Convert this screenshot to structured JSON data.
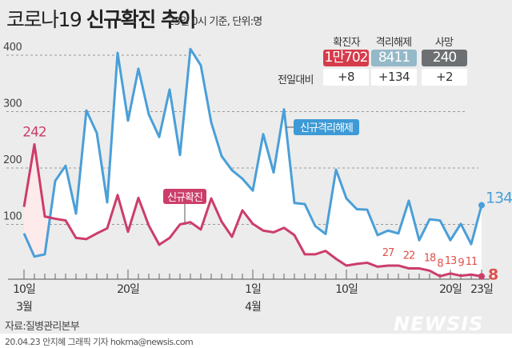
{
  "header": {
    "title_light": "코로나19",
    "title_bold": "신규확진 추이",
    "subtitle": "23일 0시 기준, 단위:명"
  },
  "summary": {
    "columns": [
      {
        "label": "확진자",
        "total": "1만702",
        "diff": "+8",
        "color": "#d63b4b"
      },
      {
        "label": "격리해제",
        "total": "8411",
        "diff": "+134",
        "color": "#94b9c8"
      },
      {
        "label": "사망",
        "total": "240",
        "diff": "+2",
        "color": "#6d7072"
      }
    ],
    "diff_label": "전일대비"
  },
  "chart_data": {
    "type": "line",
    "title": "코로나19 신규확진 추이",
    "x_start": "3월 10일",
    "x_end": "4월 23일",
    "x_tick_labels": [
      {
        "day": "10일",
        "month": "3월",
        "index": 0
      },
      {
        "day": "20일",
        "index": 10
      },
      {
        "day": "1일",
        "month": "4월",
        "index": 22
      },
      {
        "day": "10일",
        "index": 31
      },
      {
        "day": "20일",
        "index": 41
      },
      {
        "day": "23일",
        "index": 44
      }
    ],
    "y_ticks": [
      100,
      200,
      300,
      400
    ],
    "ylim": [
      0,
      420
    ],
    "grid": true,
    "series": [
      {
        "name": "신규격리해제",
        "color": "#4a9fd8",
        "values": [
          84,
          43,
          47,
          177,
          204,
          119,
          302,
          262,
          139,
          404,
          284,
          376,
          295,
          255,
          339,
          223,
          411,
          382,
          281,
          221,
          196,
          181,
          160,
          260,
          192,
          304,
          138,
          136,
          97,
          83,
          197,
          146,
          127,
          126,
          81,
          89,
          84,
          142,
          72,
          109,
          107,
          72,
          101,
          65,
          134
        ],
        "end_label": "134"
      },
      {
        "name": "신규확진",
        "color": "#cc3d6a",
        "values": [
          131,
          242,
          114,
          110,
          107,
          76,
          74,
          84,
          93,
          152,
          87,
          147,
          98,
          64,
          76,
          100,
          104,
          91,
          146,
          105,
          78,
          125,
          101,
          89,
          86,
          94,
          81,
          47,
          47,
          53,
          39,
          27,
          30,
          32,
          25,
          27,
          27,
          22,
          22,
          18,
          8,
          13,
          9,
          11,
          8
        ],
        "peak_label": "242",
        "end_label": "8",
        "point_labels": [
          {
            "index": 35,
            "text": "27"
          },
          {
            "index": 37,
            "text": "22"
          },
          {
            "index": 39,
            "text": "18"
          },
          {
            "index": 40,
            "text": "8"
          },
          {
            "index": 41,
            "text": "13"
          },
          {
            "index": 42,
            "text": "9"
          },
          {
            "index": 43,
            "text": "11"
          }
        ]
      }
    ]
  },
  "footer": {
    "source": "자료:질병관리본부",
    "credit": "20.04.23 안지혜 그래픽 기자 hokma@newsis.com",
    "logo": "NEWSIS"
  }
}
